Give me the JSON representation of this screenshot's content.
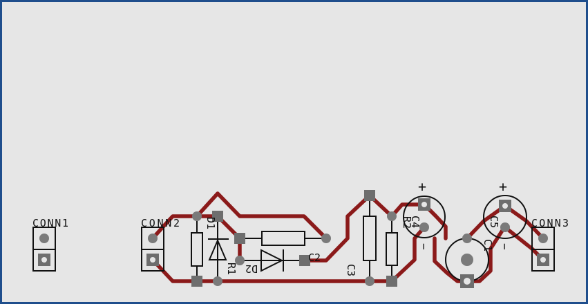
{
  "canvas": {
    "background": "#e6e6e6",
    "border_color": "#1f4e8c",
    "trace_color": "#8b1a1a",
    "silk_color": "#111111",
    "pad_color": "#6e6e6e"
  },
  "labels": {
    "conn1": "CONN1",
    "conn2": "CONN2",
    "conn3": "CONN3",
    "d1": "D1",
    "r1": "R1",
    "d2": "D2",
    "c2": "C2",
    "c3": "C3",
    "r2": "R2",
    "c4": "C4",
    "c5": "C5",
    "c1": "C1",
    "plus_c4": "+",
    "plus_c5": "+",
    "minus_c4": "−",
    "minus_c5": "−"
  }
}
